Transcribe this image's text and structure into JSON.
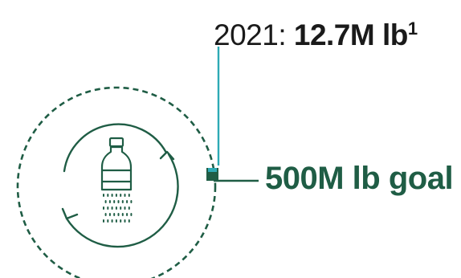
{
  "progress": {
    "year": "2021",
    "separator": ":",
    "value": "12.7M lb",
    "footnote": "1",
    "current_lb": 12700000,
    "goal_lb": 500000000,
    "fraction": 0.0254
  },
  "goal": {
    "label": "500M lb goal"
  },
  "icons": {
    "bottle": "plastic-bottle-icon",
    "recycle_arrows": "recycle-arrows-icon"
  },
  "colors": {
    "dark_green": "#1f5d45",
    "teal": "#2eaab5",
    "text": "#1a1a1a"
  }
}
